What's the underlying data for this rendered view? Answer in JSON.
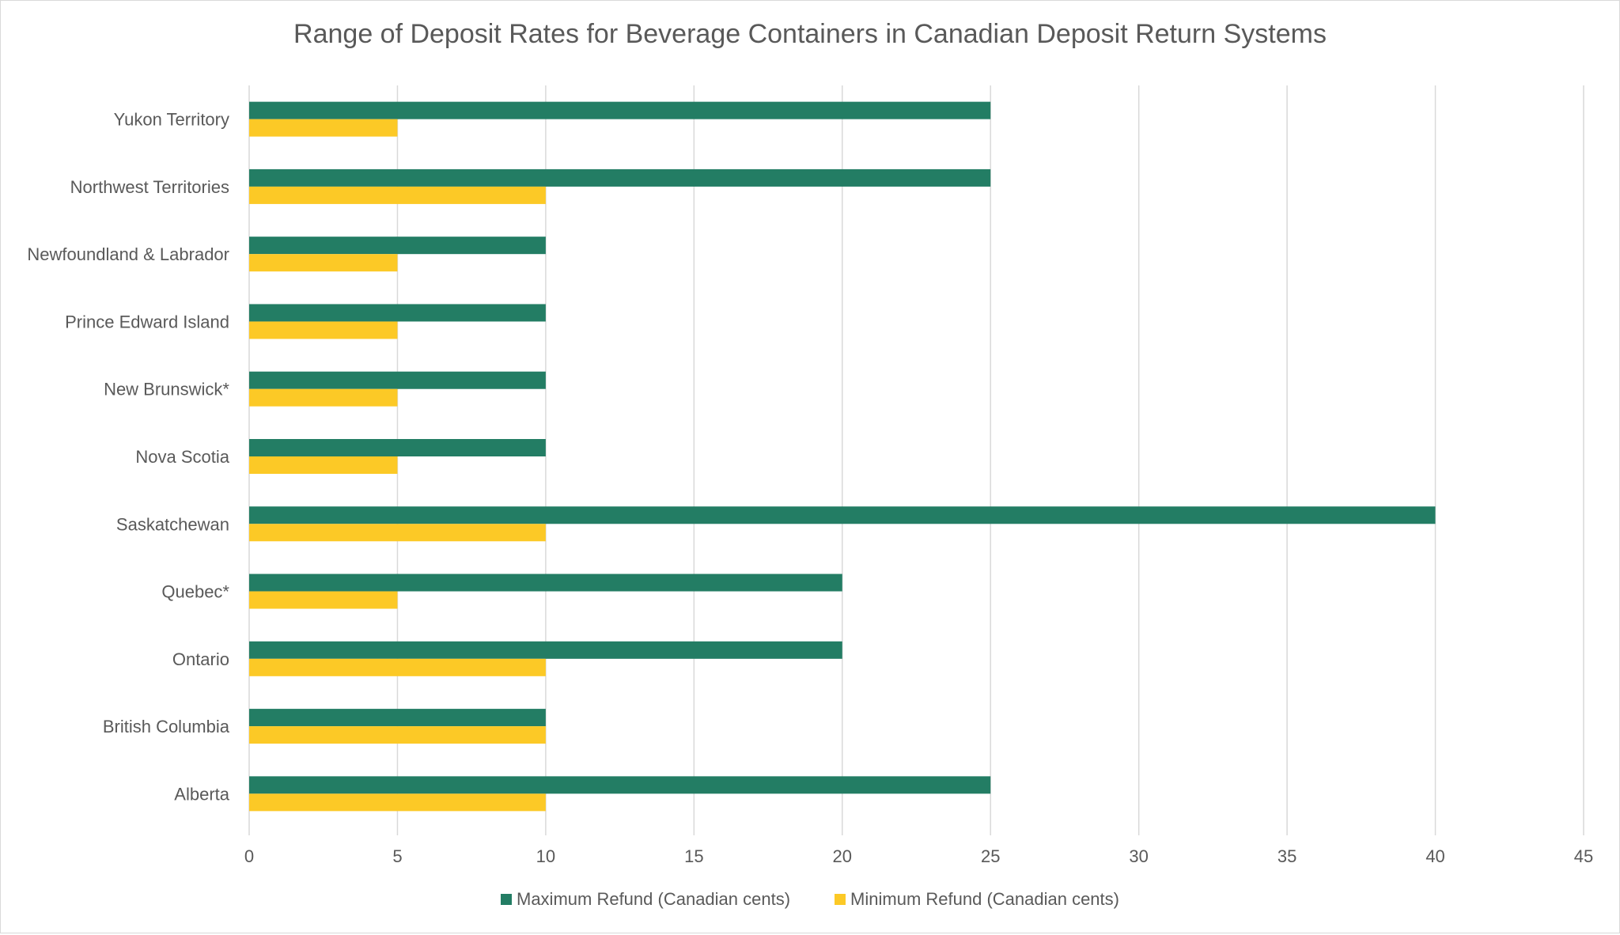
{
  "chart_data": {
    "type": "bar",
    "orientation": "horizontal",
    "title": "Range of Deposit Rates for Beverage Containers in Canadian Deposit Return Systems",
    "categories": [
      "Yukon Territory",
      "Northwest Territories",
      "Newfoundland & Labrador",
      "Prince Edward Island",
      "New Brunswick*",
      "Nova Scotia",
      "Saskatchewan",
      "Quebec*",
      "Ontario",
      "British Columbia",
      "Alberta"
    ],
    "series": [
      {
        "name": "Maximum Refund (Canadian cents)",
        "color": "#237D64",
        "values": [
          25,
          25,
          10,
          10,
          10,
          10,
          40,
          20,
          20,
          10,
          25
        ]
      },
      {
        "name": "Minimum Refund (Canadian cents)",
        "color": "#FCC926",
        "values": [
          5,
          10,
          5,
          5,
          5,
          5,
          10,
          5,
          10,
          10,
          10
        ]
      }
    ],
    "xlim": [
      0,
      45
    ],
    "xticks": [
      "0",
      "5",
      "10",
      "15",
      "20",
      "25",
      "30",
      "35",
      "40",
      "45"
    ],
    "grid": true,
    "legend": "bottom"
  }
}
